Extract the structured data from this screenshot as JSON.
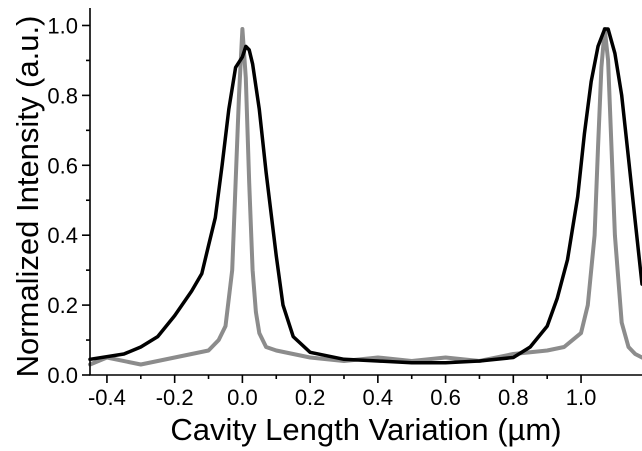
{
  "chart_data": {
    "type": "line",
    "title": "",
    "xlabel": "Cavity Length Variation (µm)",
    "ylabel": "Normalized Intensity (a.u.)",
    "xlim": [
      -0.45,
      1.18
    ],
    "ylim": [
      0.0,
      1.05
    ],
    "x_ticks": [
      -0.4,
      -0.2,
      0.0,
      0.2,
      0.4,
      0.6,
      0.8,
      1.0
    ],
    "x_tick_labels": [
      "-0.4",
      "-0.2",
      "0.0",
      "0.2",
      "0.4",
      "0.6",
      "0.8",
      "1.0"
    ],
    "y_ticks": [
      0.0,
      0.2,
      0.4,
      0.6,
      0.8,
      1.0
    ],
    "y_tick_labels": [
      "0.0",
      "0.2",
      "0.4",
      "0.6",
      "0.8",
      "1.0"
    ],
    "grid": false,
    "legend": "none",
    "series": [
      {
        "color": "#8c8c8c",
        "x": [
          -0.45,
          -0.4,
          -0.3,
          -0.2,
          -0.15,
          -0.1,
          -0.07,
          -0.05,
          -0.03,
          -0.02,
          -0.01,
          0.0,
          0.01,
          0.02,
          0.03,
          0.04,
          0.05,
          0.07,
          0.1,
          0.15,
          0.2,
          0.3,
          0.4,
          0.5,
          0.6,
          0.7,
          0.8,
          0.9,
          0.95,
          1.0,
          1.02,
          1.04,
          1.05,
          1.06,
          1.07,
          1.08,
          1.09,
          1.1,
          1.12,
          1.14,
          1.16,
          1.18
        ],
        "y": [
          0.03,
          0.05,
          0.03,
          0.05,
          0.06,
          0.07,
          0.1,
          0.14,
          0.3,
          0.55,
          0.8,
          0.99,
          0.85,
          0.55,
          0.3,
          0.18,
          0.12,
          0.08,
          0.07,
          0.06,
          0.05,
          0.04,
          0.05,
          0.04,
          0.05,
          0.04,
          0.06,
          0.07,
          0.08,
          0.12,
          0.2,
          0.4,
          0.65,
          0.88,
          0.99,
          0.9,
          0.65,
          0.4,
          0.15,
          0.08,
          0.06,
          0.05
        ]
      },
      {
        "color": "#000000",
        "x": [
          -0.45,
          -0.35,
          -0.3,
          -0.25,
          -0.2,
          -0.15,
          -0.12,
          -0.1,
          -0.08,
          -0.06,
          -0.04,
          -0.02,
          0.0,
          0.01,
          0.02,
          0.03,
          0.05,
          0.07,
          0.1,
          0.12,
          0.15,
          0.2,
          0.3,
          0.4,
          0.5,
          0.6,
          0.7,
          0.8,
          0.85,
          0.9,
          0.93,
          0.96,
          0.99,
          1.01,
          1.03,
          1.05,
          1.07,
          1.08,
          1.1,
          1.12,
          1.14,
          1.16,
          1.18
        ],
        "y": [
          0.045,
          0.06,
          0.08,
          0.11,
          0.17,
          0.24,
          0.29,
          0.37,
          0.45,
          0.6,
          0.76,
          0.88,
          0.91,
          0.94,
          0.93,
          0.89,
          0.76,
          0.58,
          0.34,
          0.2,
          0.11,
          0.065,
          0.045,
          0.04,
          0.035,
          0.035,
          0.04,
          0.05,
          0.08,
          0.14,
          0.22,
          0.33,
          0.51,
          0.69,
          0.84,
          0.94,
          0.99,
          0.99,
          0.92,
          0.8,
          0.62,
          0.44,
          0.26
        ]
      }
    ]
  }
}
